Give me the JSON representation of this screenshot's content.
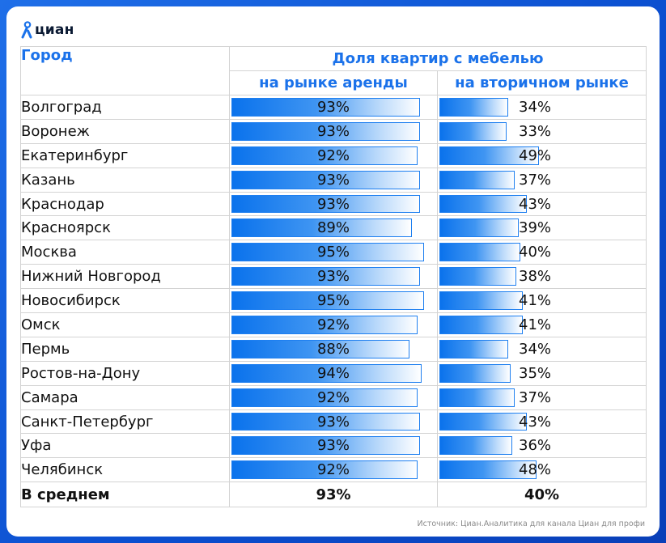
{
  "brand": {
    "name": "циан"
  },
  "colors": {
    "accent": "#1b72ea",
    "bar": "#0a72ec",
    "background": "#0b4fd0"
  },
  "table": {
    "city_header": "Город",
    "group_header": "Доля квартир с мебелью",
    "sub_headers": [
      "на рынке аренды",
      "на вторичном рынке"
    ],
    "average": {
      "label": "В среднем",
      "rent": "93%",
      "secondary": "40%"
    }
  },
  "chart_data": {
    "type": "bar",
    "title": "Доля квартир с мебелью",
    "categories": [
      "Волгоград",
      "Воронеж",
      "Екатеринбург",
      "Казань",
      "Краснодар",
      "Красноярск",
      "Москва",
      "Нижний Новгород",
      "Новосибирск",
      "Омск",
      "Пермь",
      "Ростов-на-Дону",
      "Самара",
      "Санкт-Петербург",
      "Уфа",
      "Челябинск"
    ],
    "series": [
      {
        "name": "на рынке аренды",
        "values": [
          93,
          93,
          92,
          93,
          93,
          89,
          95,
          93,
          95,
          92,
          88,
          94,
          92,
          93,
          93,
          92
        ]
      },
      {
        "name": "на вторичном рынке",
        "values": [
          34,
          33,
          49,
          37,
          43,
          39,
          40,
          38,
          41,
          41,
          34,
          35,
          37,
          43,
          36,
          48
        ]
      }
    ],
    "unit": "%",
    "ylim": [
      0,
      100
    ]
  },
  "source": "Источник: Циан.Аналитика для канала Циан для профи"
}
